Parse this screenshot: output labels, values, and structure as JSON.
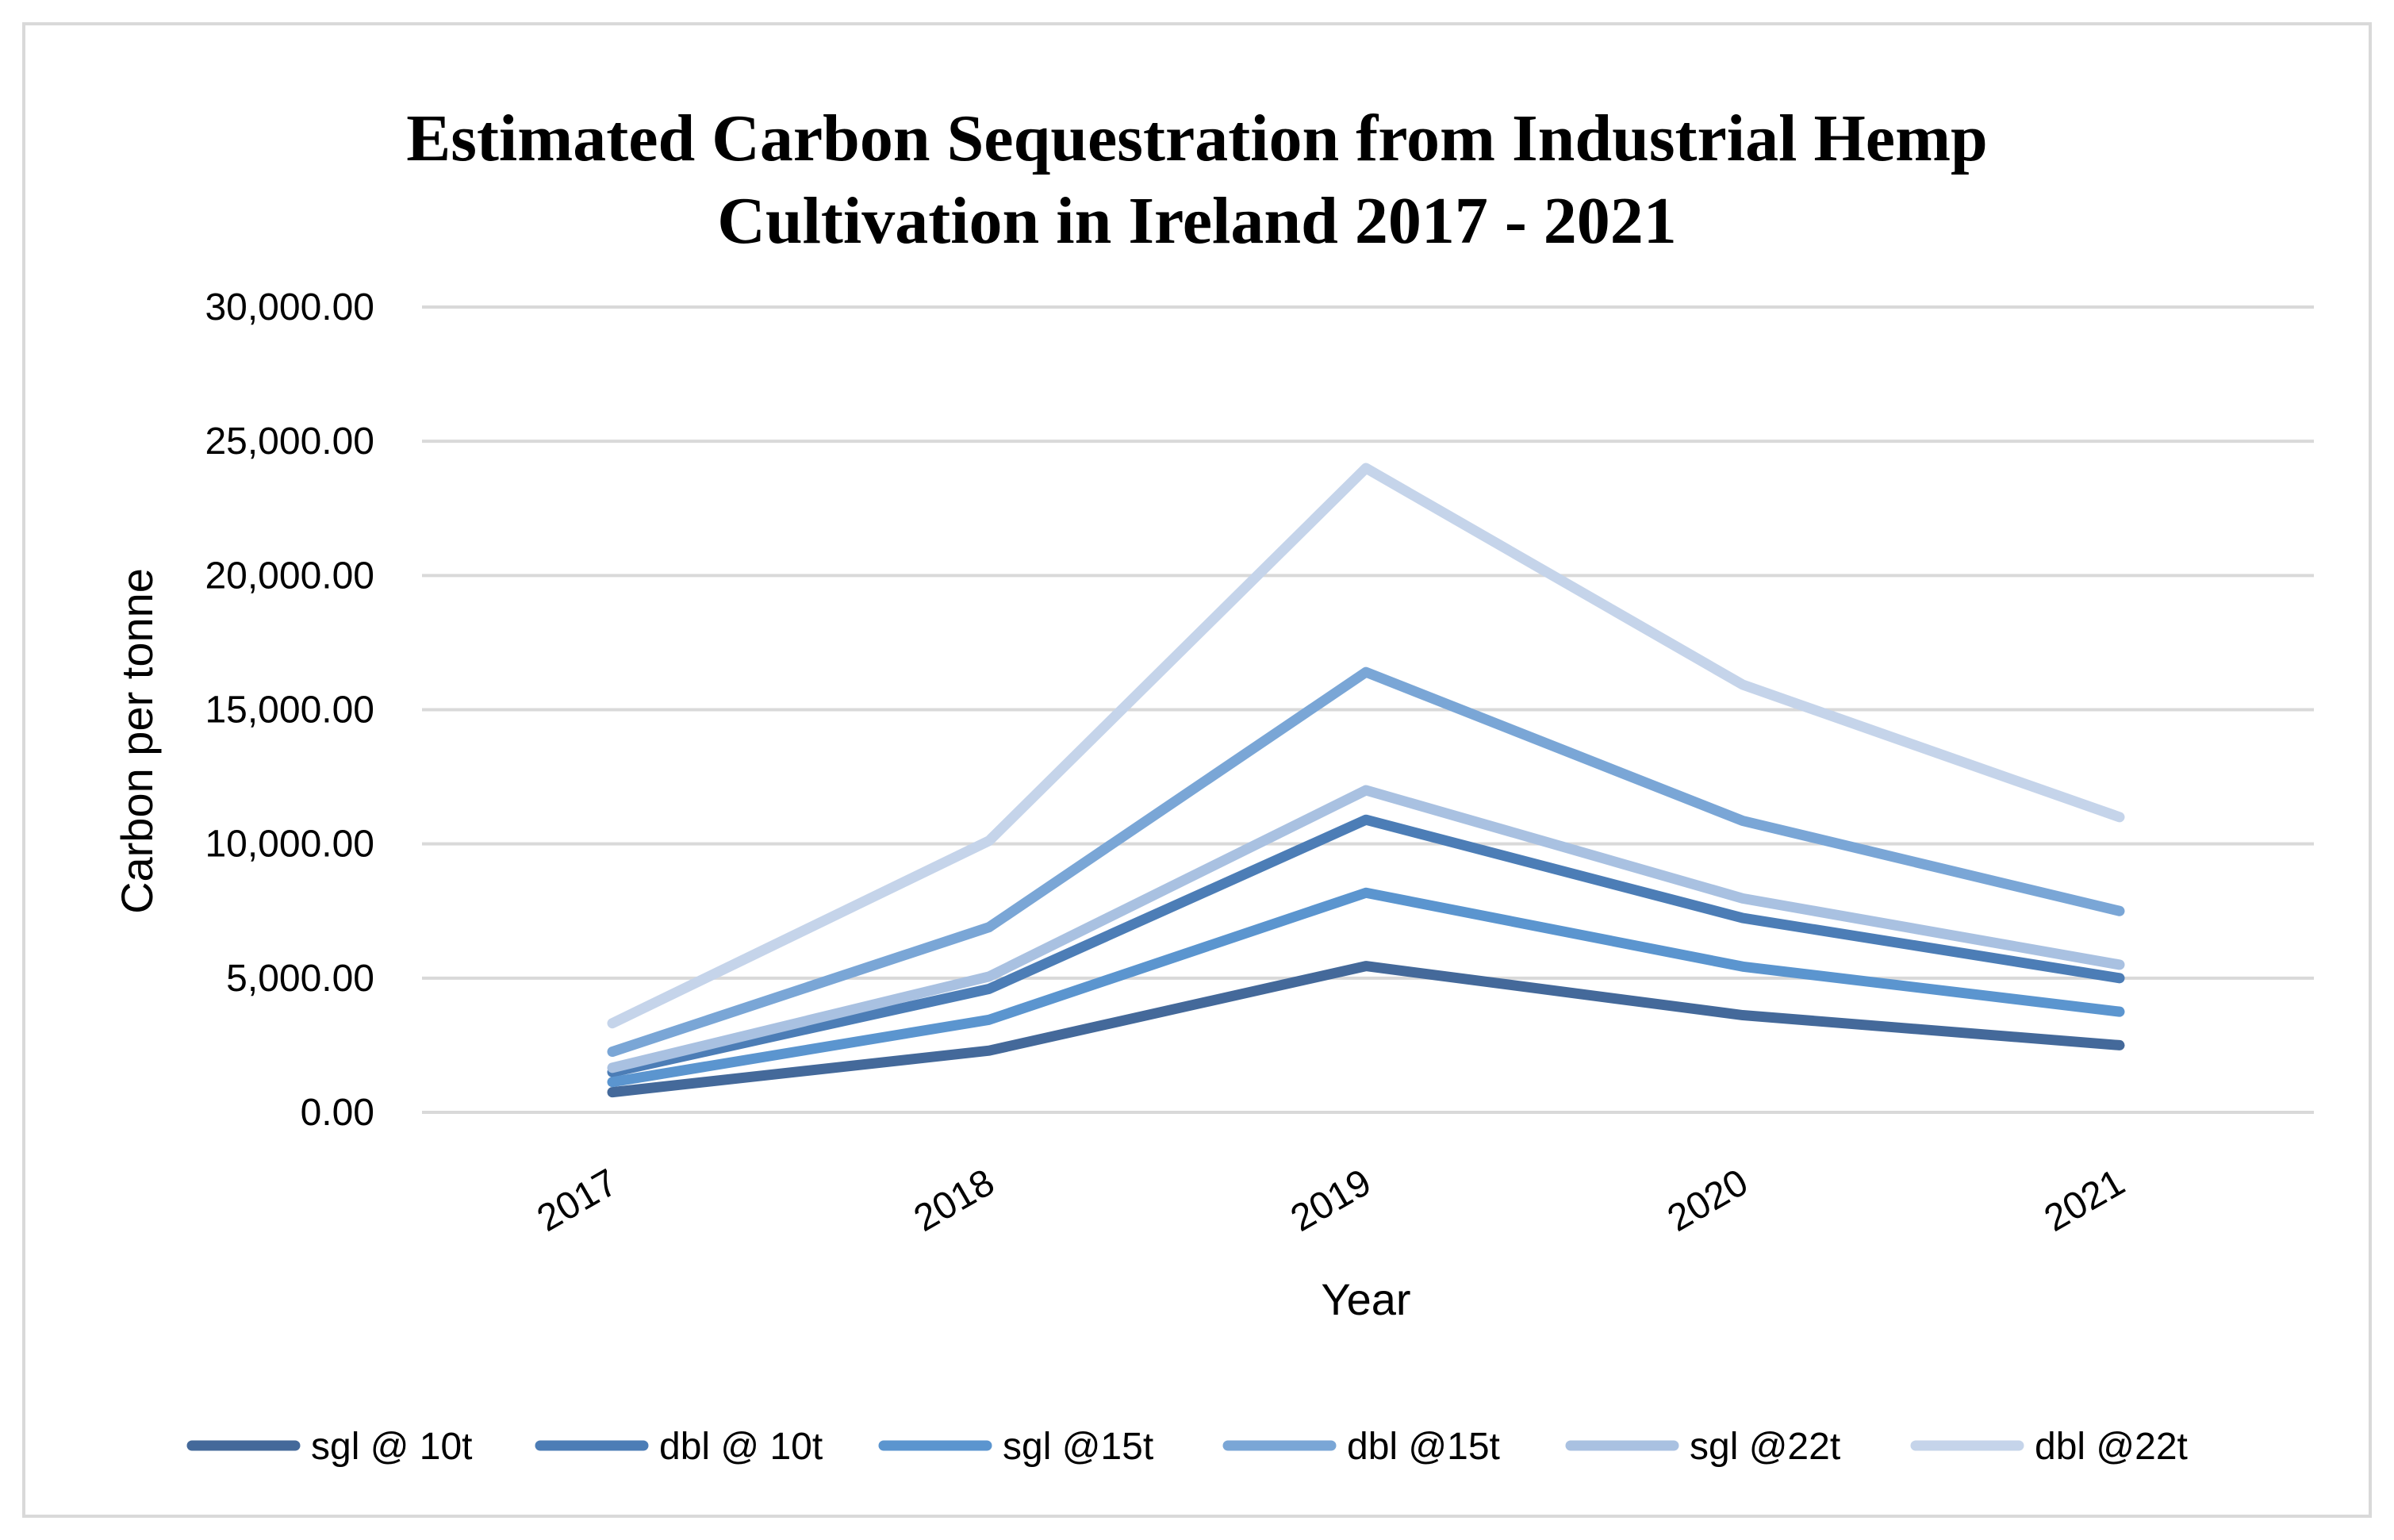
{
  "chart_data": {
    "type": "line",
    "title_lines": [
      "Estimated Carbon Sequestration from Industrial Hemp",
      "Cultivation in Ireland 2017 - 2021"
    ],
    "xlabel": "Year",
    "ylabel": "Carbon per tonne",
    "categories": [
      "2017",
      "2018",
      "2019",
      "2020",
      "2021"
    ],
    "ylim": [
      0,
      30000
    ],
    "yticks": [
      0,
      5000,
      10000,
      15000,
      20000,
      25000,
      30000
    ],
    "ytick_labels": [
      "0.00",
      "5,000.00",
      "10,000.00",
      "15,000.00",
      "20,000.00",
      "25,000.00",
      "30,000.00"
    ],
    "grid": true,
    "legend_position": "bottom",
    "series": [
      {
        "name": "sgl @ 10t",
        "color": "#44699a",
        "values": [
          750,
          2300,
          5450,
          3620,
          2500
        ]
      },
      {
        "name": "dbl @ 10t",
        "color": "#4c7db6",
        "values": [
          1500,
          4600,
          10900,
          7240,
          5000
        ]
      },
      {
        "name": "sgl @15t",
        "color": "#5b95cf",
        "values": [
          1130,
          3450,
          8180,
          5430,
          3750
        ]
      },
      {
        "name": "dbl @15t",
        "color": "#7aa6d6",
        "values": [
          2260,
          6900,
          16400,
          10860,
          7500
        ]
      },
      {
        "name": "sgl @22t",
        "color": "#a9c1e1",
        "values": [
          1660,
          5060,
          12000,
          7970,
          5500
        ]
      },
      {
        "name": "dbl @22t",
        "color": "#c5d4ea",
        "values": [
          3320,
          10120,
          24000,
          15930,
          11000
        ]
      }
    ]
  }
}
